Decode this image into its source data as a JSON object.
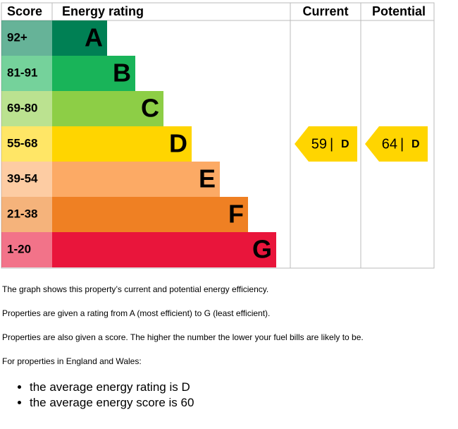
{
  "header": {
    "score": "Score",
    "rating": "Energy rating",
    "current": "Current",
    "potential": "Potential"
  },
  "bands": [
    {
      "range": "92+",
      "letter": "A",
      "color": "#008054"
    },
    {
      "range": "81-91",
      "letter": "B",
      "color": "#19b459"
    },
    {
      "range": "69-80",
      "letter": "C",
      "color": "#8dce46"
    },
    {
      "range": "55-68",
      "letter": "D",
      "color": "#ffd500"
    },
    {
      "range": "39-54",
      "letter": "E",
      "color": "#fcaa65"
    },
    {
      "range": "21-38",
      "letter": "F",
      "color": "#ef8023"
    },
    {
      "range": "1-20",
      "letter": "G",
      "color": "#e9153b"
    }
  ],
  "current": {
    "score": 59,
    "rating": "D"
  },
  "potential": {
    "score": 64,
    "rating": "D"
  },
  "text": {
    "paragraphs": [
      "The graph shows this property’s current and potential energy efficiency.",
      "Properties are given a rating from A (most efficient) to G (least efficient).",
      "Properties are also given a score. The higher the number the lower your fuel bills are likely to be.",
      "For properties in England and Wales:"
    ],
    "bullets": [
      "the average energy rating is D",
      "the average energy score is 60"
    ]
  }
}
